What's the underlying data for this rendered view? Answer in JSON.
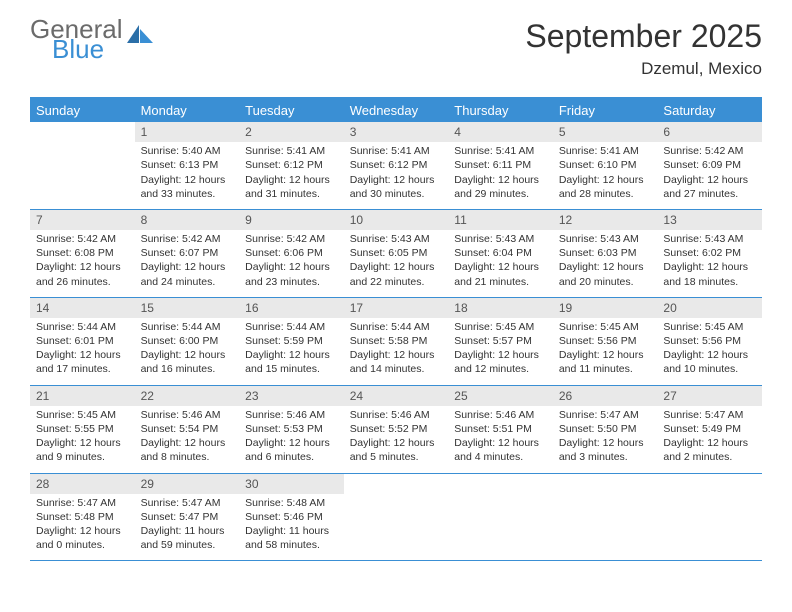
{
  "logo": {
    "word1": "General",
    "word2": "Blue"
  },
  "title": "September 2025",
  "location": "Dzemul, Mexico",
  "colors": {
    "accent": "#3a8fd4",
    "header_bg": "#3a8fd4",
    "daynum_bg": "#e9e9e9",
    "text": "#333333",
    "logo_gray": "#6b6b6b"
  },
  "day_names": [
    "Sunday",
    "Monday",
    "Tuesday",
    "Wednesday",
    "Thursday",
    "Friday",
    "Saturday"
  ],
  "weeks": [
    [
      null,
      {
        "n": "1",
        "sr": "5:40 AM",
        "ss": "6:13 PM",
        "dl": "12 hours and 33 minutes."
      },
      {
        "n": "2",
        "sr": "5:41 AM",
        "ss": "6:12 PM",
        "dl": "12 hours and 31 minutes."
      },
      {
        "n": "3",
        "sr": "5:41 AM",
        "ss": "6:12 PM",
        "dl": "12 hours and 30 minutes."
      },
      {
        "n": "4",
        "sr": "5:41 AM",
        "ss": "6:11 PM",
        "dl": "12 hours and 29 minutes."
      },
      {
        "n": "5",
        "sr": "5:41 AM",
        "ss": "6:10 PM",
        "dl": "12 hours and 28 minutes."
      },
      {
        "n": "6",
        "sr": "5:42 AM",
        "ss": "6:09 PM",
        "dl": "12 hours and 27 minutes."
      }
    ],
    [
      {
        "n": "7",
        "sr": "5:42 AM",
        "ss": "6:08 PM",
        "dl": "12 hours and 26 minutes."
      },
      {
        "n": "8",
        "sr": "5:42 AM",
        "ss": "6:07 PM",
        "dl": "12 hours and 24 minutes."
      },
      {
        "n": "9",
        "sr": "5:42 AM",
        "ss": "6:06 PM",
        "dl": "12 hours and 23 minutes."
      },
      {
        "n": "10",
        "sr": "5:43 AM",
        "ss": "6:05 PM",
        "dl": "12 hours and 22 minutes."
      },
      {
        "n": "11",
        "sr": "5:43 AM",
        "ss": "6:04 PM",
        "dl": "12 hours and 21 minutes."
      },
      {
        "n": "12",
        "sr": "5:43 AM",
        "ss": "6:03 PM",
        "dl": "12 hours and 20 minutes."
      },
      {
        "n": "13",
        "sr": "5:43 AM",
        "ss": "6:02 PM",
        "dl": "12 hours and 18 minutes."
      }
    ],
    [
      {
        "n": "14",
        "sr": "5:44 AM",
        "ss": "6:01 PM",
        "dl": "12 hours and 17 minutes."
      },
      {
        "n": "15",
        "sr": "5:44 AM",
        "ss": "6:00 PM",
        "dl": "12 hours and 16 minutes."
      },
      {
        "n": "16",
        "sr": "5:44 AM",
        "ss": "5:59 PM",
        "dl": "12 hours and 15 minutes."
      },
      {
        "n": "17",
        "sr": "5:44 AM",
        "ss": "5:58 PM",
        "dl": "12 hours and 14 minutes."
      },
      {
        "n": "18",
        "sr": "5:45 AM",
        "ss": "5:57 PM",
        "dl": "12 hours and 12 minutes."
      },
      {
        "n": "19",
        "sr": "5:45 AM",
        "ss": "5:56 PM",
        "dl": "12 hours and 11 minutes."
      },
      {
        "n": "20",
        "sr": "5:45 AM",
        "ss": "5:56 PM",
        "dl": "12 hours and 10 minutes."
      }
    ],
    [
      {
        "n": "21",
        "sr": "5:45 AM",
        "ss": "5:55 PM",
        "dl": "12 hours and 9 minutes."
      },
      {
        "n": "22",
        "sr": "5:46 AM",
        "ss": "5:54 PM",
        "dl": "12 hours and 8 minutes."
      },
      {
        "n": "23",
        "sr": "5:46 AM",
        "ss": "5:53 PM",
        "dl": "12 hours and 6 minutes."
      },
      {
        "n": "24",
        "sr": "5:46 AM",
        "ss": "5:52 PM",
        "dl": "12 hours and 5 minutes."
      },
      {
        "n": "25",
        "sr": "5:46 AM",
        "ss": "5:51 PM",
        "dl": "12 hours and 4 minutes."
      },
      {
        "n": "26",
        "sr": "5:47 AM",
        "ss": "5:50 PM",
        "dl": "12 hours and 3 minutes."
      },
      {
        "n": "27",
        "sr": "5:47 AM",
        "ss": "5:49 PM",
        "dl": "12 hours and 2 minutes."
      }
    ],
    [
      {
        "n": "28",
        "sr": "5:47 AM",
        "ss": "5:48 PM",
        "dl": "12 hours and 0 minutes."
      },
      {
        "n": "29",
        "sr": "5:47 AM",
        "ss": "5:47 PM",
        "dl": "11 hours and 59 minutes."
      },
      {
        "n": "30",
        "sr": "5:48 AM",
        "ss": "5:46 PM",
        "dl": "11 hours and 58 minutes."
      },
      null,
      null,
      null,
      null
    ]
  ],
  "labels": {
    "sunrise": "Sunrise:",
    "sunset": "Sunset:",
    "daylight": "Daylight:"
  }
}
